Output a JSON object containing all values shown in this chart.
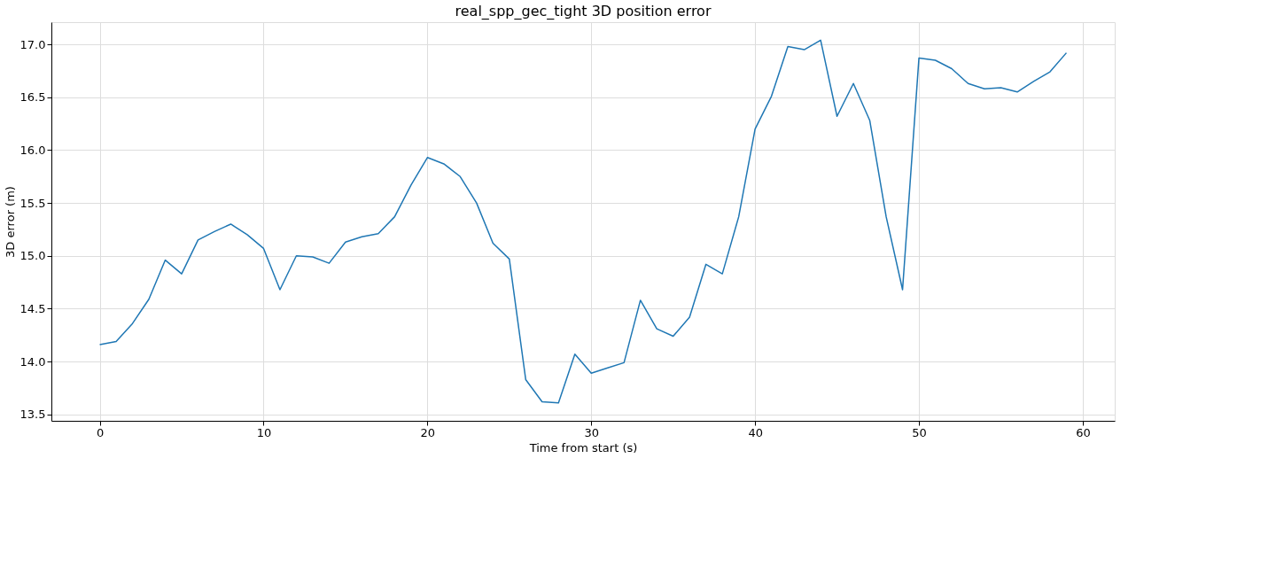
{
  "chart_data": {
    "type": "line",
    "title": "real_spp_gec_tight 3D position error",
    "xlabel": "Time from start (s)",
    "ylabel": "3D error (m)",
    "x": [
      0,
      1,
      2,
      3,
      4,
      5,
      6,
      7,
      8,
      9,
      10,
      11,
      12,
      13,
      14,
      15,
      16,
      17,
      18,
      19,
      20,
      21,
      22,
      23,
      24,
      25,
      26,
      27,
      28,
      29,
      30,
      31,
      32,
      33,
      34,
      35,
      36,
      37,
      38,
      39,
      40,
      41,
      42,
      43,
      44,
      45,
      46,
      47,
      48,
      49,
      50,
      51,
      52,
      53,
      54,
      55,
      56,
      57,
      58,
      59
    ],
    "series": [
      {
        "color": "#1f77b4",
        "values": [
          14.16,
          14.19,
          14.36,
          14.59,
          14.96,
          14.83,
          15.15,
          15.23,
          15.3,
          15.2,
          15.07,
          14.68,
          15.0,
          14.99,
          14.93,
          15.13,
          15.18,
          15.21,
          15.37,
          15.67,
          15.93,
          15.87,
          15.75,
          15.5,
          15.12,
          14.97,
          13.83,
          13.62,
          13.61,
          14.07,
          13.89,
          13.94,
          13.99,
          14.58,
          14.31,
          14.24,
          14.42,
          14.92,
          14.83,
          15.37,
          16.2,
          16.51,
          16.98,
          16.95,
          17.04,
          16.32,
          16.63,
          16.28,
          15.37,
          14.68,
          16.87,
          16.85,
          16.77,
          16.63,
          16.58,
          16.59,
          16.55,
          16.65,
          16.74,
          16.92
        ]
      }
    ],
    "xlim": [
      -2.95,
      61.95
    ],
    "xticks": [
      0,
      10,
      20,
      30,
      40,
      50,
      60
    ],
    "ylim": [
      13.44,
      17.21
    ],
    "yticks": [
      13.5,
      {
        "value": 14,
        "label": "14.0"
      },
      14.5,
      {
        "value": 15,
        "label": "15.0"
      },
      15.5,
      {
        "value": 16,
        "label": "16.0"
      },
      16.5,
      {
        "value": 17,
        "label": "17.0"
      }
    ],
    "grid": true
  }
}
